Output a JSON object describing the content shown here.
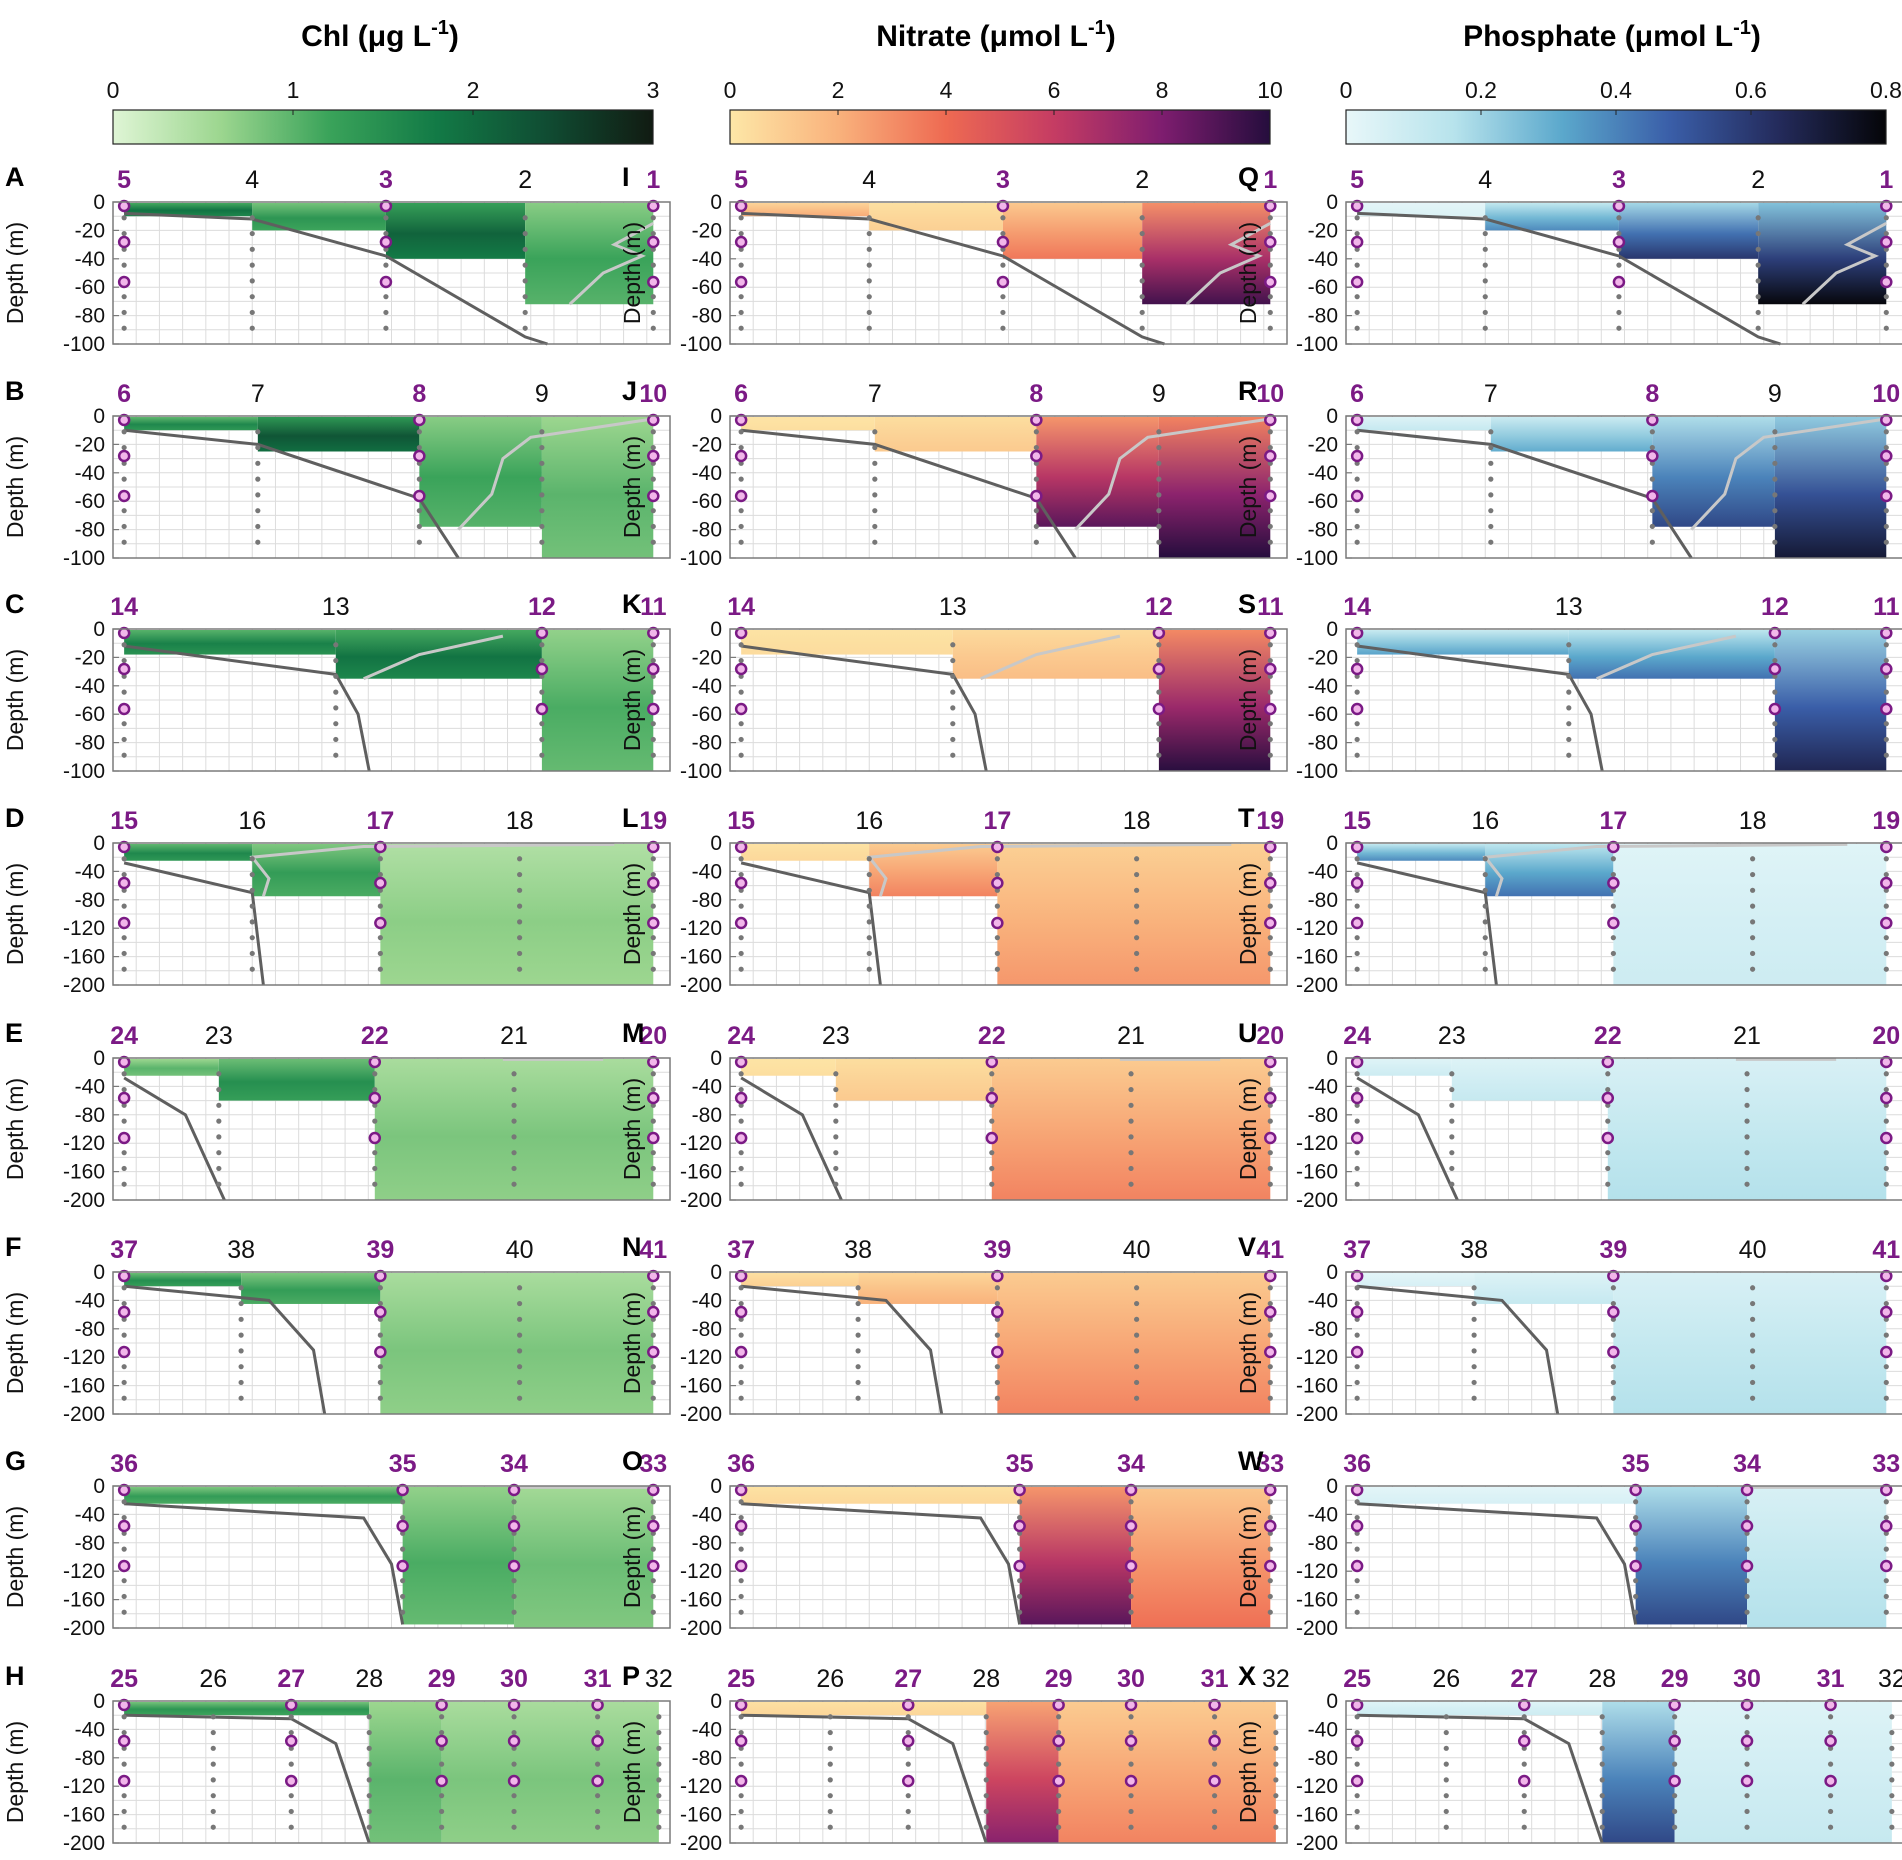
{
  "figure": {
    "ylabel": "Depth (m)",
    "colors": {
      "station_sampled": "#7b1a85",
      "station_marker_fill": "#f2b6ea",
      "bottom_line": "#5f5f5f",
      "mld_line": "#c8c8c8",
      "sample_dot": "#777777",
      "grid": "#dcdcdc",
      "frame": "#7a7a7a"
    }
  },
  "chart_data": [
    {
      "type": "colorbar",
      "variable": "chl",
      "title": "Chl (μg L",
      "title_unit_sup": "-1",
      "title_close": ")",
      "range": [
        0,
        3
      ],
      "ticks": [
        "0",
        "1",
        "2",
        "3"
      ],
      "tick_values": [
        0,
        1,
        2,
        3
      ],
      "colormap": [
        "#dff5d5",
        "#9cd68f",
        "#3aa35a",
        "#127a46",
        "#104d33",
        "#111b12"
      ]
    },
    {
      "type": "colorbar",
      "variable": "nitrate",
      "title": "Nitrate (μmol L",
      "title_unit_sup": "-1",
      "title_close": ")",
      "range": [
        0,
        10
      ],
      "ticks": [
        "0",
        "2",
        "4",
        "6",
        "8",
        "10"
      ],
      "tick_values": [
        0,
        2,
        4,
        6,
        8,
        10
      ],
      "colormap": [
        "#fde7a7",
        "#f9b27c",
        "#ee6a52",
        "#c53c63",
        "#7e1d6f",
        "#250d3d"
      ]
    },
    {
      "type": "colorbar",
      "variable": "phosphate",
      "title": "Phosphate (μmol L",
      "title_unit_sup": "-1",
      "title_close": ")",
      "range": [
        0,
        0.8
      ],
      "ticks": [
        "0",
        "0.2",
        "0.4",
        "0.6",
        "0.8"
      ],
      "tick_values": [
        0,
        0.2,
        0.4,
        0.6,
        0.8
      ],
      "colormap": [
        "#e8f7f9",
        "#b7e3ec",
        "#5ba8cc",
        "#3a5ea8",
        "#242b5c",
        "#050508"
      ]
    },
    {
      "type": "heatmap-transect-row",
      "row": 0,
      "panel_letters": [
        "A",
        "I",
        "Q"
      ],
      "ylim": [
        -100,
        0
      ],
      "yticks": [
        "0",
        "-20",
        "-40",
        "-60",
        "-80",
        "-100"
      ],
      "ytick_values": [
        0,
        -20,
        -40,
        -60,
        -80,
        -100
      ],
      "x_range": [
        0,
        1
      ],
      "stations": [
        {
          "label": "5",
          "x": 0.02,
          "sampled": true
        },
        {
          "label": "4",
          "x": 0.25,
          "sampled": false
        },
        {
          "label": "3",
          "x": 0.49,
          "sampled": true
        },
        {
          "label": "2",
          "x": 0.74,
          "sampled": false
        },
        {
          "label": "1",
          "x": 0.97,
          "sampled": true
        }
      ],
      "blocks": [
        {
          "x0": 0.02,
          "x1": 0.25,
          "d": 10,
          "vals": [
            1.9,
            2.0,
            0.04
          ]
        },
        {
          "x0": 0.25,
          "x1": 0.49,
          "d": 20,
          "vals": [
            1.4,
            0.8,
            0.35
          ]
        },
        {
          "x0": 0.49,
          "x1": 0.74,
          "d": 40,
          "vals": [
            2.1,
            3.3,
            0.55
          ]
        },
        {
          "x0": 0.74,
          "x1": 0.97,
          "d": 72,
          "vals": [
            1.2,
            8.5,
            0.72
          ]
        }
      ],
      "bottom": [
        [
          0.02,
          -8
        ],
        [
          0.25,
          -12
        ],
        [
          0.49,
          -38
        ],
        [
          0.74,
          -95
        ],
        [
          0.78,
          -100
        ]
      ],
      "mld": [
        [
          0.97,
          -15
        ],
        [
          0.9,
          -30
        ],
        [
          0.95,
          -38
        ],
        [
          0.88,
          -50
        ],
        [
          0.82,
          -72
        ]
      ]
    },
    {
      "type": "heatmap-transect-row",
      "row": 1,
      "panel_letters": [
        "B",
        "J",
        "R"
      ],
      "ylim": [
        -100,
        0
      ],
      "yticks": [
        "0",
        "-20",
        "-40",
        "-60",
        "-80",
        "-100"
      ],
      "ytick_values": [
        0,
        -20,
        -40,
        -60,
        -80,
        -100
      ],
      "x_range": [
        0,
        1
      ],
      "stations": [
        {
          "label": "6",
          "x": 0.02,
          "sampled": true
        },
        {
          "label": "7",
          "x": 0.26,
          "sampled": false
        },
        {
          "label": "8",
          "x": 0.55,
          "sampled": true
        },
        {
          "label": "9",
          "x": 0.77,
          "sampled": false
        },
        {
          "label": "10",
          "x": 0.97,
          "sampled": true
        }
      ],
      "blocks": [
        {
          "x0": 0.02,
          "x1": 0.26,
          "d": 10,
          "vals": [
            1.6,
            0.3,
            0.1
          ]
        },
        {
          "x0": 0.26,
          "x1": 0.55,
          "d": 25,
          "vals": [
            2.3,
            1.0,
            0.28
          ]
        },
        {
          "x0": 0.55,
          "x1": 0.77,
          "d": 78,
          "vals": [
            1.2,
            8.0,
            0.5
          ]
        },
        {
          "x0": 0.77,
          "x1": 0.97,
          "d": 100,
          "vals": [
            1.0,
            9.5,
            0.65
          ]
        }
      ],
      "bottom": [
        [
          0.02,
          -10
        ],
        [
          0.26,
          -20
        ],
        [
          0.55,
          -58
        ],
        [
          0.62,
          -100
        ]
      ],
      "mld": [
        [
          0.97,
          -2
        ],
        [
          0.75,
          -15
        ],
        [
          0.7,
          -30
        ],
        [
          0.68,
          -55
        ],
        [
          0.62,
          -80
        ]
      ]
    },
    {
      "type": "heatmap-transect-row",
      "row": 2,
      "panel_letters": [
        "C",
        "K",
        "S"
      ],
      "ylim": [
        -100,
        0
      ],
      "yticks": [
        "0",
        "-20",
        "-40",
        "-60",
        "-80",
        "-100"
      ],
      "ytick_values": [
        0,
        -20,
        -40,
        -60,
        -80,
        -100
      ],
      "x_range": [
        0,
        1
      ],
      "stations": [
        {
          "label": "14",
          "x": 0.02,
          "sampled": true
        },
        {
          "label": "13",
          "x": 0.4,
          "sampled": false
        },
        {
          "label": "12",
          "x": 0.77,
          "sampled": true
        },
        {
          "label": "11",
          "x": 0.97,
          "sampled": true
        }
      ],
      "blocks": [
        {
          "x0": 0.02,
          "x1": 0.4,
          "d": 18,
          "vals": [
            1.7,
            0.4,
            0.3
          ]
        },
        {
          "x0": 0.4,
          "x1": 0.77,
          "d": 35,
          "vals": [
            1.9,
            1.4,
            0.4
          ]
        },
        {
          "x0": 0.77,
          "x1": 0.97,
          "d": 100,
          "vals": [
            1.1,
            9.0,
            0.6
          ]
        }
      ],
      "bottom": [
        [
          0.02,
          -12
        ],
        [
          0.4,
          -32
        ],
        [
          0.44,
          -60
        ],
        [
          0.46,
          -100
        ]
      ],
      "mld": [
        [
          0.7,
          -5
        ],
        [
          0.55,
          -18
        ],
        [
          0.45,
          -35
        ]
      ]
    },
    {
      "type": "heatmap-transect-row",
      "row": 3,
      "panel_letters": [
        "D",
        "L",
        "T"
      ],
      "ylim": [
        -200,
        0
      ],
      "yticks": [
        "0",
        "-40",
        "-80",
        "-120",
        "-160",
        "-200"
      ],
      "ytick_values": [
        0,
        -40,
        -80,
        -120,
        -160,
        -200
      ],
      "x_range": [
        0,
        1
      ],
      "stations": [
        {
          "label": "15",
          "x": 0.02,
          "sampled": true
        },
        {
          "label": "16",
          "x": 0.25,
          "sampled": false
        },
        {
          "label": "17",
          "x": 0.48,
          "sampled": true
        },
        {
          "label": "18",
          "x": 0.73,
          "sampled": false
        },
        {
          "label": "19",
          "x": 0.97,
          "sampled": true
        }
      ],
      "blocks": [
        {
          "x0": 0.02,
          "x1": 0.25,
          "d": 25,
          "vals": [
            1.6,
            0.5,
            0.35
          ]
        },
        {
          "x0": 0.25,
          "x1": 0.48,
          "d": 75,
          "vals": [
            1.3,
            3.0,
            0.4
          ]
        },
        {
          "x0": 0.48,
          "x1": 0.97,
          "d": 200,
          "vals": [
            0.7,
            2.5,
            0.08
          ]
        }
      ],
      "bottom": [
        [
          0.02,
          -28
        ],
        [
          0.25,
          -70
        ],
        [
          0.27,
          -200
        ]
      ],
      "mld": [
        [
          0.9,
          -2
        ],
        [
          0.45,
          -5
        ],
        [
          0.25,
          -20
        ],
        [
          0.28,
          -50
        ],
        [
          0.27,
          -75
        ]
      ]
    },
    {
      "type": "heatmap-transect-row",
      "row": 4,
      "panel_letters": [
        "E",
        "M",
        "U"
      ],
      "ylim": [
        -200,
        0
      ],
      "yticks": [
        "0",
        "-40",
        "-80",
        "-120",
        "-160",
        "-200"
      ],
      "ytick_values": [
        0,
        -40,
        -80,
        -120,
        -160,
        -200
      ],
      "x_range": [
        0,
        1
      ],
      "stations": [
        {
          "label": "24",
          "x": 0.02,
          "sampled": true
        },
        {
          "label": "23",
          "x": 0.19,
          "sampled": false
        },
        {
          "label": "22",
          "x": 0.47,
          "sampled": true
        },
        {
          "label": "21",
          "x": 0.72,
          "sampled": false
        },
        {
          "label": "20",
          "x": 0.97,
          "sampled": true
        }
      ],
      "blocks": [
        {
          "x0": 0.02,
          "x1": 0.19,
          "d": 25,
          "vals": [
            1.0,
            0.3,
            0.08
          ]
        },
        {
          "x0": 0.19,
          "x1": 0.47,
          "d": 60,
          "vals": [
            1.5,
            1.0,
            0.1
          ]
        },
        {
          "x0": 0.47,
          "x1": 0.97,
          "d": 200,
          "vals": [
            0.8,
            3.0,
            0.15
          ]
        }
      ],
      "bottom": [
        [
          0.02,
          -28
        ],
        [
          0.13,
          -80
        ],
        [
          0.2,
          -200
        ]
      ],
      "mld": [
        [
          0.7,
          -2
        ],
        [
          0.88,
          -2
        ]
      ]
    },
    {
      "type": "heatmap-transect-row",
      "row": 5,
      "panel_letters": [
        "F",
        "N",
        "V"
      ],
      "ylim": [
        -200,
        0
      ],
      "yticks": [
        "0",
        "-40",
        "-80",
        "-120",
        "-160",
        "-200"
      ],
      "ytick_values": [
        0,
        -40,
        -80,
        -120,
        -160,
        -200
      ],
      "x_range": [
        0,
        1
      ],
      "stations": [
        {
          "label": "37",
          "x": 0.02,
          "sampled": true
        },
        {
          "label": "38",
          "x": 0.23,
          "sampled": false
        },
        {
          "label": "39",
          "x": 0.48,
          "sampled": true
        },
        {
          "label": "40",
          "x": 0.73,
          "sampled": false
        },
        {
          "label": "41",
          "x": 0.97,
          "sampled": true
        }
      ],
      "blocks": [
        {
          "x0": 0.02,
          "x1": 0.23,
          "d": 20,
          "vals": [
            1.5,
            0.8,
            0.05
          ]
        },
        {
          "x0": 0.23,
          "x1": 0.48,
          "d": 45,
          "vals": [
            1.3,
            1.8,
            0.1
          ]
        },
        {
          "x0": 0.48,
          "x1": 0.97,
          "d": 200,
          "vals": [
            0.8,
            3.0,
            0.15
          ]
        }
      ],
      "bottom": [
        [
          0.02,
          -20
        ],
        [
          0.28,
          -40
        ],
        [
          0.36,
          -110
        ],
        [
          0.38,
          -200
        ]
      ],
      "mld": []
    },
    {
      "type": "heatmap-transect-row",
      "row": 6,
      "panel_letters": [
        "G",
        "O",
        "W"
      ],
      "ylim": [
        -200,
        0
      ],
      "yticks": [
        "0",
        "-40",
        "-80",
        "-120",
        "-160",
        "-200"
      ],
      "ytick_values": [
        0,
        -40,
        -80,
        -120,
        -160,
        -200
      ],
      "x_range": [
        0,
        1
      ],
      "stations": [
        {
          "label": "36",
          "x": 0.02,
          "sampled": true
        },
        {
          "label": "35",
          "x": 0.52,
          "sampled": true
        },
        {
          "label": "34",
          "x": 0.72,
          "sampled": true
        },
        {
          "label": "33",
          "x": 0.97,
          "sampled": true
        }
      ],
      "blocks": [
        {
          "x0": 0.02,
          "x1": 0.52,
          "d": 25,
          "vals": [
            1.3,
            0.5,
            0.05
          ]
        },
        {
          "x0": 0.52,
          "x1": 0.72,
          "d": 195,
          "vals": [
            1.1,
            8.0,
            0.5
          ]
        },
        {
          "x0": 0.72,
          "x1": 0.97,
          "d": 200,
          "vals": [
            0.9,
            3.5,
            0.15
          ]
        }
      ],
      "bottom": [
        [
          0.02,
          -25
        ],
        [
          0.45,
          -45
        ],
        [
          0.5,
          -110
        ],
        [
          0.52,
          -195
        ]
      ],
      "mld": [
        [
          0.72,
          -2
        ],
        [
          0.97,
          -2
        ]
      ]
    },
    {
      "type": "heatmap-transect-row",
      "row": 7,
      "panel_letters": [
        "H",
        "P",
        "X"
      ],
      "ylim": [
        -200,
        0
      ],
      "yticks": [
        "0",
        "-40",
        "-80",
        "-120",
        "-160",
        "-200"
      ],
      "ytick_values": [
        0,
        -40,
        -80,
        -120,
        -160,
        -200
      ],
      "x_range": [
        0,
        1
      ],
      "stations": [
        {
          "label": "25",
          "x": 0.02,
          "sampled": true
        },
        {
          "label": "26",
          "x": 0.18,
          "sampled": false
        },
        {
          "label": "27",
          "x": 0.32,
          "sampled": true
        },
        {
          "label": "28",
          "x": 0.46,
          "sampled": false
        },
        {
          "label": "29",
          "x": 0.59,
          "sampled": true
        },
        {
          "label": "30",
          "x": 0.72,
          "sampled": true
        },
        {
          "label": "31",
          "x": 0.87,
          "sampled": true
        },
        {
          "label": "32",
          "x": 0.98,
          "sampled": false
        }
      ],
      "blocks": [
        {
          "x0": 0.02,
          "x1": 0.46,
          "d": 20,
          "vals": [
            1.4,
            0.6,
            0.08
          ]
        },
        {
          "x0": 0.46,
          "x1": 0.59,
          "d": 200,
          "vals": [
            1.0,
            7.0,
            0.5
          ]
        },
        {
          "x0": 0.59,
          "x1": 0.98,
          "d": 200,
          "vals": [
            0.8,
            3.0,
            0.1
          ]
        }
      ],
      "bottom": [
        [
          0.02,
          -20
        ],
        [
          0.32,
          -25
        ],
        [
          0.4,
          -60
        ],
        [
          0.46,
          -200
        ]
      ],
      "mld": []
    }
  ]
}
